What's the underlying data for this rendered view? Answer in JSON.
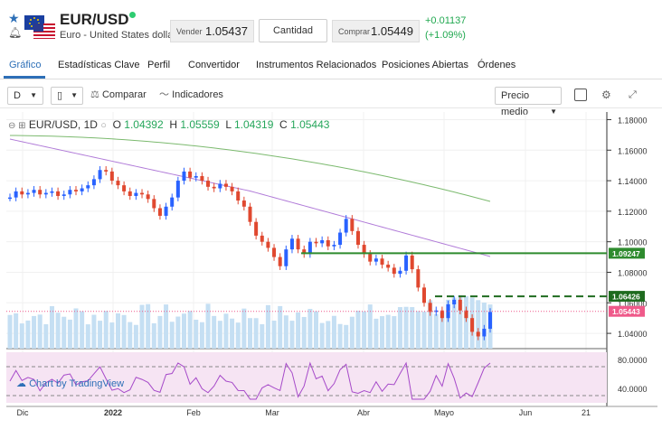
{
  "header": {
    "symbol": "EUR/USD",
    "name": "Euro - United States dollar",
    "sell_label": "Vender",
    "sell_price": "1.05437",
    "quantity_label": "Cantidad",
    "buy_label": "Comprar",
    "buy_price": "1.05449",
    "change_abs": "+0.01137",
    "change_pct": "(+1.09%)",
    "up_color": "#20a84f"
  },
  "tabs": [
    "Gráfico",
    "Estadísticas Clave",
    "Perfil",
    "Convertidor",
    "Instrumentos Relacionados",
    "Posiciones Abiertas",
    "Órdenes"
  ],
  "toolbar": {
    "interval": "D",
    "compare_label": "Comparar",
    "indicators_label": "Indicadores",
    "price_type": "Precio medio"
  },
  "legend": {
    "symbol": "EUR/USD, 1D",
    "o_label": "O",
    "o_value": "1.04392",
    "h_label": "H",
    "h_value": "1.05559",
    "l_label": "L",
    "l_value": "1.04319",
    "c_label": "C",
    "c_value": "1.05443"
  },
  "attribution": "Chart by TradingView",
  "chart_data": {
    "type": "line",
    "y_ticks": [
      "1.18000",
      "1.16000",
      "1.14000",
      "1.12000",
      "1.10000",
      "1.08000",
      "1.06000",
      "1.04000"
    ],
    "ylim": [
      1.03,
      1.185
    ],
    "x_ticks": [
      "Dic",
      "2022",
      "Feb",
      "Mar",
      "Abr",
      "Mayo",
      "Jun",
      "21"
    ],
    "price_markers": [
      {
        "label": "1.09247",
        "value": 1.09247,
        "color": "#2e8b2e"
      },
      {
        "label": "1.06426",
        "value": 1.06426,
        "color": "#1f6b1f"
      },
      {
        "label": "1.05443",
        "value": 1.05443,
        "color": "#ef5a8a"
      }
    ],
    "series": [
      {
        "values": [
          1.129,
          1.133,
          1.131,
          1.132,
          1.134,
          1.131,
          1.132,
          1.133,
          1.13,
          1.131,
          1.134,
          1.133,
          1.135,
          1.137,
          1.141,
          1.147,
          1.146,
          1.14,
          1.137,
          1.133,
          1.13,
          1.132,
          1.131,
          1.128,
          1.122,
          1.117,
          1.123,
          1.129,
          1.14,
          1.146,
          1.142,
          1.143,
          1.14,
          1.136,
          1.135,
          1.138,
          1.136,
          1.133,
          1.127,
          1.123,
          1.113,
          1.104,
          1.1,
          1.096,
          1.09,
          1.084,
          1.095,
          1.102,
          1.095,
          1.092,
          1.1,
          1.099,
          1.101,
          1.097,
          1.098,
          1.106,
          1.115,
          1.107,
          1.098,
          1.092,
          1.087,
          1.089,
          1.085,
          1.083,
          1.079,
          1.081,
          1.091,
          1.082,
          1.07,
          1.06,
          1.054,
          1.055,
          1.05,
          1.059,
          1.062,
          1.055,
          1.05,
          1.041,
          1.038,
          1.043,
          1.054
        ]
      }
    ],
    "ma_lines": [
      {
        "name": "",
        "color": "#7cba6f"
      },
      {
        "name": "",
        "color": "#b07ad8"
      }
    ],
    "rsi": {
      "y_ticks": [
        "80.0000",
        "40.0000"
      ],
      "ylim": [
        20,
        90
      ]
    }
  }
}
